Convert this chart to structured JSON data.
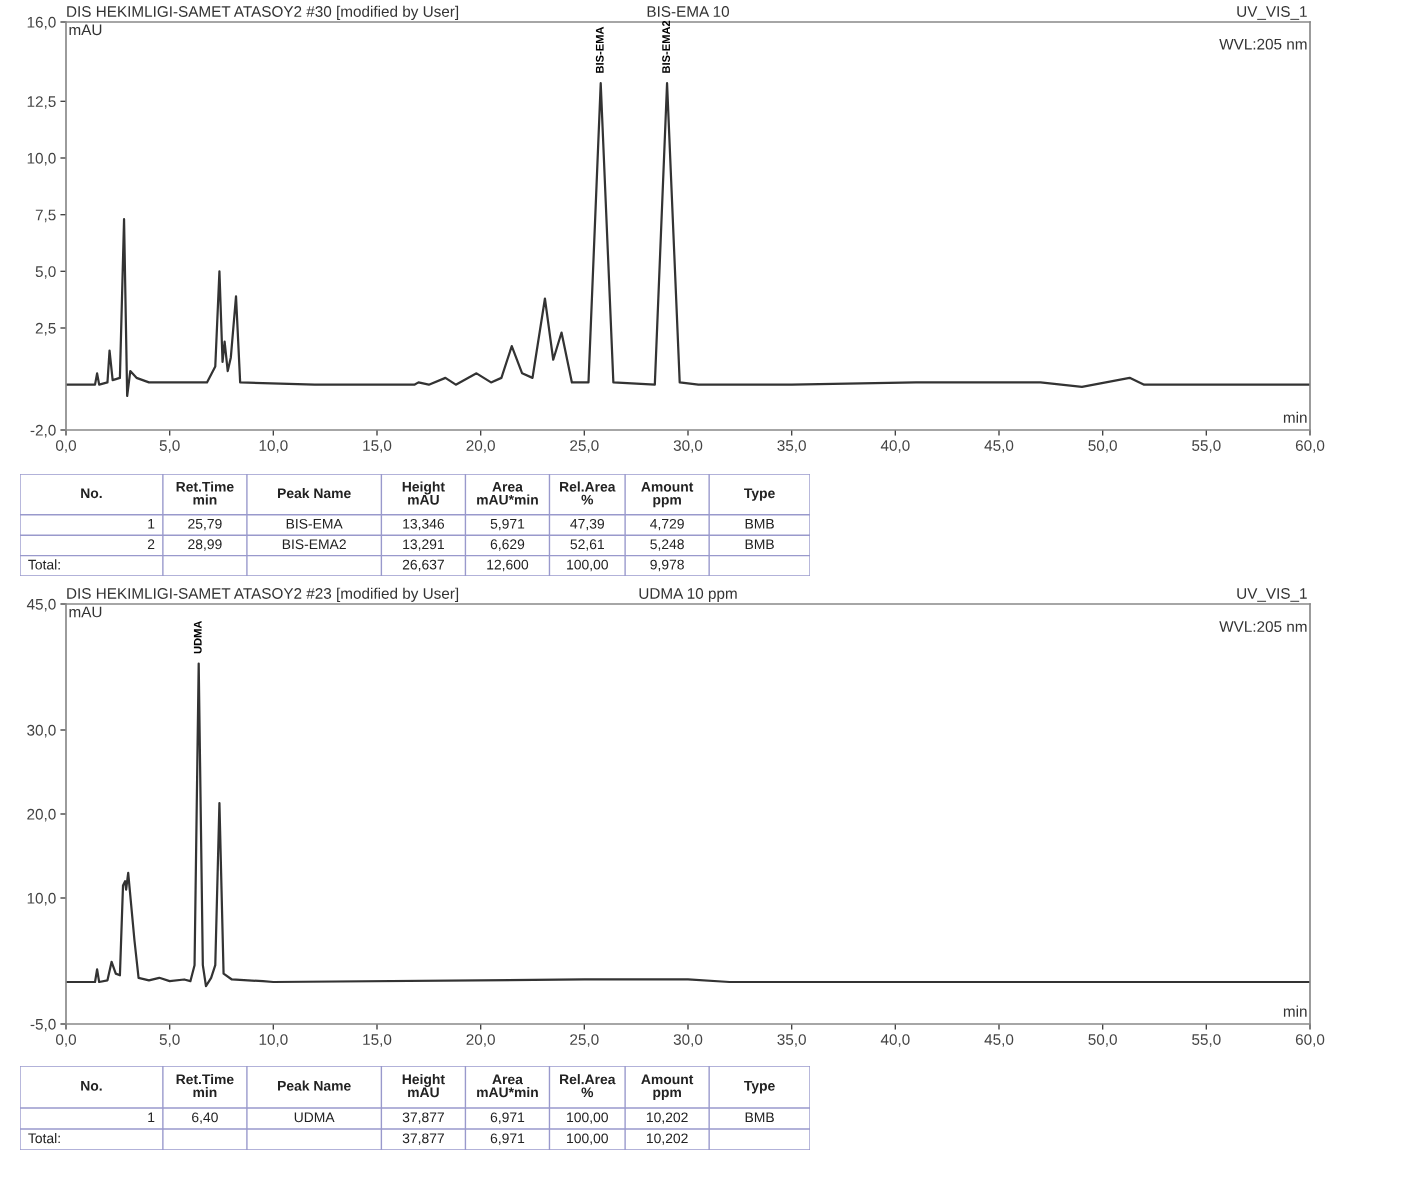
{
  "chart_data": [
    {
      "type": "line",
      "title": "DIS HEKIMLIGI-SAMET ATASOY2 #30 [modified by User]",
      "subtitle": "BIS-EMA 10",
      "xlabel": "min",
      "ylabel": "mAU",
      "series": [
        {
          "color": "#333333",
          "x": [
            0,
            1.4,
            1.5,
            1.6,
            2.0,
            2.1,
            2.25,
            2.6,
            2.8,
            2.95,
            3.1,
            3.4,
            4.0,
            6.8,
            7.2,
            7.4,
            7.55,
            7.65,
            7.8,
            7.95,
            8.2,
            8.4,
            12,
            16.8,
            17,
            17.5,
            18.3,
            18.8,
            19.8,
            20.5,
            21.0,
            21.5,
            22.0,
            22.5,
            23.1,
            23.5,
            23.9,
            24.4,
            25.2,
            25.79,
            26.4,
            28.4,
            28.99,
            29.6,
            30.5,
            35,
            41,
            45,
            47,
            49,
            51.3,
            52,
            60
          ],
          "values": [
            0,
            0,
            0.5,
            0,
            0.1,
            1.5,
            0.2,
            0.3,
            7.3,
            -0.5,
            0.6,
            0.3,
            0.1,
            0.1,
            0.8,
            5.0,
            1.0,
            1.9,
            0.6,
            1.2,
            3.9,
            0.1,
            0,
            0,
            0.1,
            0,
            0.3,
            0,
            0.5,
            0.1,
            0.3,
            1.7,
            0.5,
            0.3,
            3.8,
            1.1,
            2.3,
            0.1,
            0.1,
            13.3,
            0.1,
            0,
            13.3,
            0.1,
            0,
            0,
            0.1,
            0.1,
            0.1,
            -0.1,
            0.3,
            0,
            0
          ]
        }
      ],
      "xlim": [
        0,
        60
      ],
      "ylim": [
        -2,
        16
      ],
      "xticks": [
        {
          "value": 0,
          "label": "0,0"
        },
        {
          "value": 5,
          "label": "5,0"
        },
        {
          "value": 10,
          "label": "10,0"
        },
        {
          "value": 15,
          "label": "15,0"
        },
        {
          "value": 20,
          "label": "20,0"
        },
        {
          "value": 25,
          "label": "25,0"
        },
        {
          "value": 30,
          "label": "30,0"
        },
        {
          "value": 35,
          "label": "35,0"
        },
        {
          "value": 40,
          "label": "40,0"
        },
        {
          "value": 45,
          "label": "45,0"
        },
        {
          "value": 50,
          "label": "50,0"
        },
        {
          "value": 55,
          "label": "55,0"
        },
        {
          "value": 60,
          "label": "60,0"
        }
      ],
      "yticks": [
        {
          "value": -2,
          "label": "-2,0"
        },
        {
          "value": 2.5,
          "label": "2,5"
        },
        {
          "value": 5,
          "label": "5,0"
        },
        {
          "value": 7.5,
          "label": "7,5"
        },
        {
          "value": 10,
          "label": "10,0"
        },
        {
          "value": 12.5,
          "label": "12,5"
        },
        {
          "value": 16,
          "label": "16,0"
        }
      ],
      "grid": false,
      "legend": false,
      "marker": "none",
      "line_style": "solid",
      "annotations": [
        {
          "text": "BIS-EMA",
          "x": 25.79,
          "y": 13.3
        },
        {
          "text": "BIS-EMA2",
          "x": 28.99,
          "y": 13.3
        },
        "UV_VIS_1",
        "WVL:205 nm",
        "No.\tRet.Time\nmin\tPeak Name\tHeight\nmAU\tArea\nmAU*min\tRel.Area\n%\tAmount\nppm\tType",
        "1\t25,79\tBIS-EMA\t13,346\t5,971\t47,39\t4,729\tBMB",
        "2\t28,99\tBIS-EMA2\t13,291\t6,629\t52,61\t5,248\tBMB",
        "Total:\t\t\t26,637\t12,600\t100,00\t9,978\t"
      ]
    },
    {
      "type": "line",
      "title": "DIS HEKIMLIGI-SAMET ATASOY2 #23 [modified by User]",
      "subtitle": "UDMA 10 ppm",
      "xlabel": "min",
      "ylabel": "mAU",
      "series": [
        {
          "color": "#333333",
          "x": [
            0,
            1.4,
            1.5,
            1.6,
            2.0,
            2.2,
            2.4,
            2.6,
            2.75,
            2.85,
            2.9,
            3.0,
            3.3,
            3.5,
            4.0,
            4.5,
            5.0,
            5.7,
            6.0,
            6.2,
            6.4,
            6.6,
            6.75,
            7.0,
            7.2,
            7.4,
            7.6,
            8.0,
            9.5,
            10,
            25,
            30,
            32,
            60
          ],
          "values": [
            0,
            0,
            1.5,
            0,
            0.2,
            2.4,
            1.0,
            0.8,
            11.5,
            12.0,
            11.0,
            13.0,
            5.0,
            0.5,
            0.2,
            0.5,
            0.1,
            0.3,
            0.1,
            2.0,
            37.9,
            2.0,
            -0.5,
            0.5,
            2.0,
            21.3,
            1.0,
            0.3,
            0.1,
            0,
            0.3,
            0.3,
            0,
            0
          ]
        }
      ],
      "xlim": [
        0,
        60
      ],
      "ylim": [
        -5,
        45
      ],
      "xticks": [
        {
          "value": 0,
          "label": "0,0"
        },
        {
          "value": 5,
          "label": "5,0"
        },
        {
          "value": 10,
          "label": "10,0"
        },
        {
          "value": 15,
          "label": "15,0"
        },
        {
          "value": 20,
          "label": "20,0"
        },
        {
          "value": 25,
          "label": "25,0"
        },
        {
          "value": 30,
          "label": "30,0"
        },
        {
          "value": 35,
          "label": "35,0"
        },
        {
          "value": 40,
          "label": "40,0"
        },
        {
          "value": 45,
          "label": "45,0"
        },
        {
          "value": 50,
          "label": "50,0"
        },
        {
          "value": 55,
          "label": "55,0"
        },
        {
          "value": 60,
          "label": "60,0"
        }
      ],
      "yticks": [
        {
          "value": -5,
          "label": "-5,0"
        },
        {
          "value": 10,
          "label": "10,0"
        },
        {
          "value": 20,
          "label": "20,0"
        },
        {
          "value": 30,
          "label": "30,0"
        },
        {
          "value": 45,
          "label": "45,0"
        }
      ],
      "grid": false,
      "legend": false,
      "marker": "none",
      "line_style": "solid",
      "annotations": [
        {
          "text": "UDMA",
          "x": 6.4,
          "y": 37.9
        },
        "UV_VIS_1",
        "WVL:205 nm",
        "No.\tRet.Time\nmin\tPeak Name\tHeight\nmAU\tArea\nmAU*min\tRel.Area\n%\tAmount\nppm\tType",
        "1\t6,40\tUDMA\t37,877\t6,971\t100,00\t10,202\tBMB",
        "Total:\t\t\t37,877\t6,971\t100,00\t10,202\t"
      ]
    }
  ]
}
